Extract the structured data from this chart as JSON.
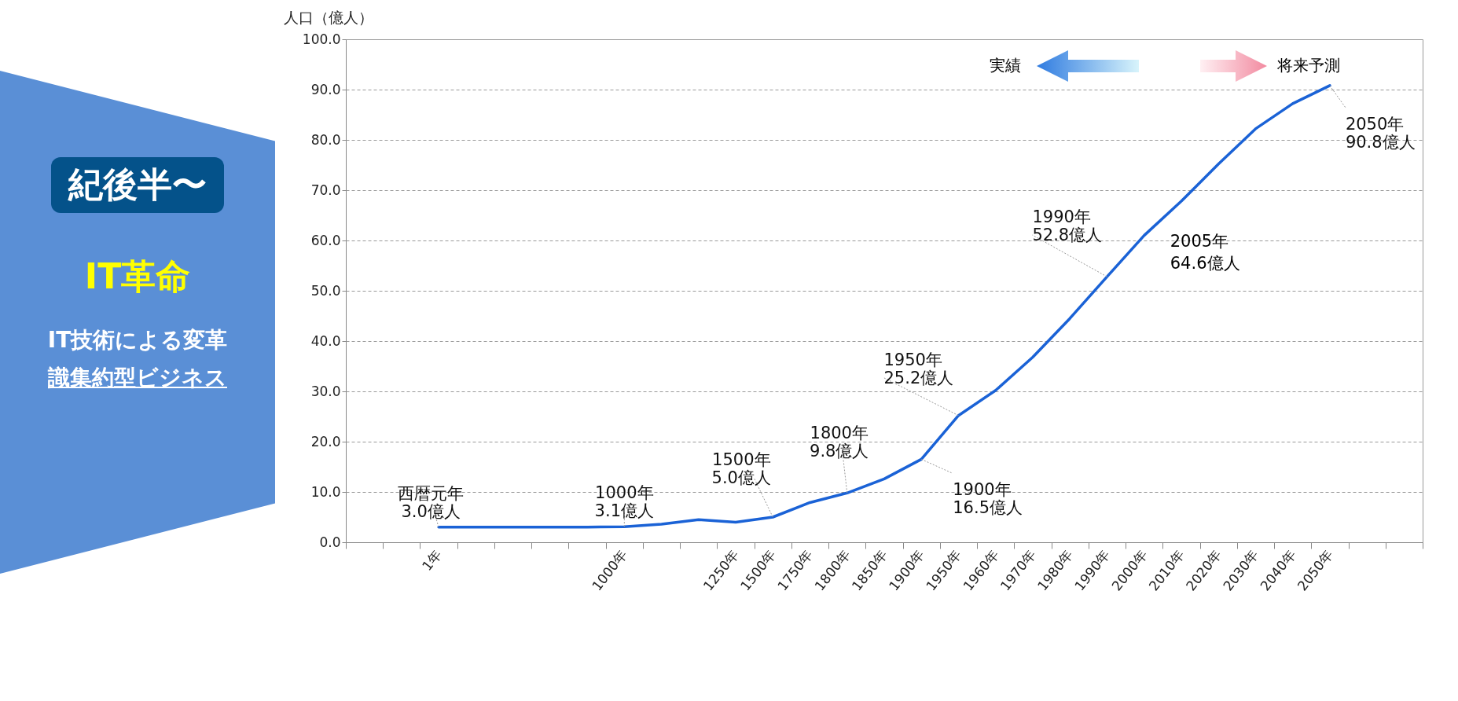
{
  "chart_data": {
    "type": "line",
    "ylabel": "人口（億人）",
    "categories": [
      null,
      null,
      "1年",
      null,
      null,
      null,
      null,
      "1000年",
      null,
      null,
      "1250年",
      "1500年",
      "1750年",
      "1800年",
      "1850年",
      "1900年",
      "1950年",
      "1960年",
      "1970年",
      "1980年",
      "1990年",
      "2000年",
      "2010年",
      "2020年",
      "2030年",
      "2040年",
      "2050年",
      null,
      null
    ],
    "series": [
      {
        "color": "#1a62d6",
        "values": [
          null,
          null,
          3.0,
          3.0,
          3.0,
          3.0,
          3.0,
          3.1,
          3.6,
          4.5,
          4.0,
          5.0,
          7.9,
          9.8,
          12.6,
          16.5,
          25.2,
          30.2,
          36.8,
          44.5,
          52.8,
          61.0,
          67.8,
          75.2,
          82.2,
          87.2,
          90.8,
          null,
          null
        ]
      }
    ],
    "ylim": [
      0,
      100
    ],
    "yticks": [
      {
        "value": 0,
        "label": "0.0"
      },
      {
        "value": 10,
        "label": "10.0"
      },
      {
        "value": 20,
        "label": "20.0"
      },
      {
        "value": 30,
        "label": "30.0"
      },
      {
        "value": 40,
        "label": "40.0"
      },
      {
        "value": 50,
        "label": "50.0"
      },
      {
        "value": 60,
        "label": "60.0"
      },
      {
        "value": 70,
        "label": "70.0"
      },
      {
        "value": 80,
        "label": "80.0"
      },
      {
        "value": 90,
        "label": "90.0"
      },
      {
        "value": 100,
        "label": "100.0"
      }
    ],
    "grid": "y",
    "marker": "none",
    "line_style": "solid",
    "annotations": [
      {
        "text": "西暦元年\n3.0億人",
        "x": "1年",
        "y": 3.0
      },
      {
        "text": "1000年\n3.1億人",
        "x": "1000年",
        "y": 3.1
      },
      {
        "text": "1500年\n5.0億人",
        "x": "1500年",
        "y": 5.0
      },
      {
        "text": "1800年\n9.8億人",
        "x": "1800年",
        "y": 9.8
      },
      {
        "text": "1900年\n16.5億人",
        "x": "1900年",
        "y": 16.5
      },
      {
        "text": "1950年\n25.2億人",
        "x": "1950年",
        "y": 25.2
      },
      {
        "text": "1990年\n52.8億人",
        "x": "1990年",
        "y": 52.8
      },
      "2005年\n64.6億人",
      {
        "text": "2050年\n90.8億人",
        "x": "2050年",
        "y": 90.8
      },
      "実績",
      "将来予測",
      "紀後半〜",
      "IT革命",
      "IT技術による変革",
      "識集約型ビジネス"
    ]
  }
}
